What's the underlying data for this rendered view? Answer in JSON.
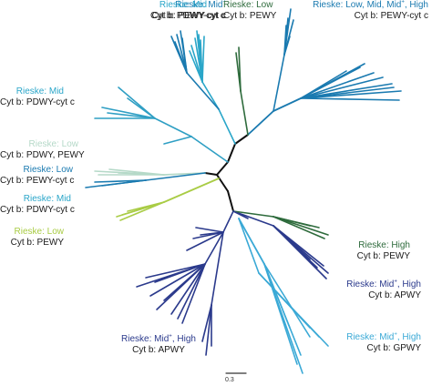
{
  "colors": {
    "trunk": "#111111",
    "mid_blue": "#1a7ab0",
    "mid_light": "#2aa6c9",
    "teal": "#2f9fc4",
    "dark_green": "#2e6b3c",
    "pale_green": "#b5d9c8",
    "lime": "#a9cc45",
    "navy": "#2b3a8c",
    "sky": "#3aa9d6"
  },
  "labels": {
    "top_mid_sup": {
      "rieske": "Rieske: Mid",
      "sup": "+",
      "cytb": "Cyt b: PEWY-cyt c"
    },
    "top_mid": {
      "rieske": "Rieske: Mid",
      "cytb": "Cyt b: PDWY-cyt c"
    },
    "top_low": {
      "rieske": "Rieske: Low",
      "cytb": "Cyt b: PEWY"
    },
    "top_right": {
      "rieske": "Rieske: Low, Mid, Mid",
      "sup": "+",
      "tail": ", High",
      "cytb": "Cyt b: PEWY-cyt c"
    },
    "left_mid1": {
      "rieske": "Rieske: Mid",
      "cytb": "Cyt b: PDWY-cyt c"
    },
    "left_low1": {
      "rieske": "Rieske: Low",
      "cytb": "Cyt b: PDWY, PEWY"
    },
    "left_low2": {
      "rieske": "Rieske: Low",
      "cytb": "Cyt b: PEWY-cyt c"
    },
    "left_mid2": {
      "rieske": "Rieske: Mid",
      "cytb": "Cyt b: PDWY-cyt c"
    },
    "left_low3": {
      "rieske": "Rieske: Low",
      "cytb": "Cyt b: PEWY"
    },
    "right_high": {
      "rieske": "Rieske: High",
      "cytb": "Cyt b: PEWY"
    },
    "right_midhigh": {
      "rieske": "Rieske: Mid",
      "sup": "+",
      "tail": ", High",
      "cytb": "Cyt b: APWY"
    },
    "right_midhigh2": {
      "rieske": "Rieske: Mid",
      "sup": "+",
      "tail": ", High",
      "cytb": "Cyt b: GPWY"
    },
    "bottom_midhigh": {
      "rieske": "Rieske: Mid",
      "sup": "+",
      "tail": ", High",
      "cytb": "Cyt b: APWY"
    }
  },
  "scale_bar": "0.3"
}
